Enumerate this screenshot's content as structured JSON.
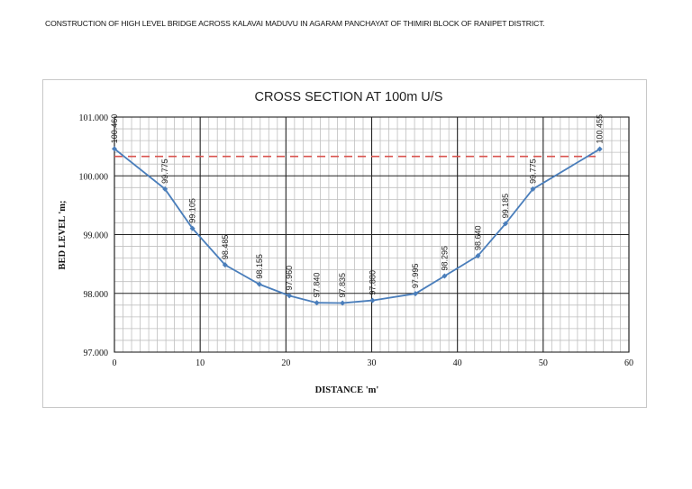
{
  "page": {
    "title": "CONSTRUCTION OF HIGH LEVEL BRIDGE ACROSS KALAVAI MADUVU IN AGARAM PANCHAYAT OF THIMIRI BLOCK OF RANIPET DISTRICT."
  },
  "colors": {
    "series": "#4a7ebb",
    "hfl_line": "#d9534f",
    "major_grid": "#000000",
    "minor_grid": "#bfbfbf"
  },
  "chart_data": {
    "type": "line",
    "title": "CROSS SECTION AT  100m U/S",
    "xlabel": "DISTANCE 'm'",
    "ylabel": "BED LEVEL 'm;",
    "xlim": [
      0,
      60
    ],
    "ylim": [
      97.0,
      101.0
    ],
    "x_ticks": [
      "0",
      "10",
      "20",
      "30",
      "40",
      "50",
      "60"
    ],
    "y_ticks": [
      "97.000",
      "98.000",
      "99.000",
      "100.000",
      "101.000"
    ],
    "grid": true,
    "legend": null,
    "series": [
      {
        "name": "Bed Level",
        "x": [
          0,
          5.9,
          9.1,
          12.9,
          16.9,
          20.4,
          23.6,
          26.6,
          30.1,
          35.1,
          38.5,
          42.4,
          45.6,
          48.8,
          56.6
        ],
        "values": [
          100.46,
          99.775,
          99.105,
          98.485,
          98.155,
          97.96,
          97.84,
          97.835,
          97.88,
          97.995,
          98.295,
          98.64,
          99.185,
          99.775,
          100.455
        ],
        "labels": [
          "100.460",
          "99.775",
          "99.105",
          "98.485",
          "98.155",
          "97.960",
          "97.840",
          "97.835",
          "97.880",
          "97.995",
          "98.295",
          "98.640",
          "99.185",
          "99.775",
          "100.455"
        ]
      }
    ],
    "annotations": [
      {
        "type": "hline",
        "style": "dashed",
        "y": 100.33,
        "x_range": [
          0,
          56.6
        ],
        "color": "#d9534f"
      }
    ]
  }
}
